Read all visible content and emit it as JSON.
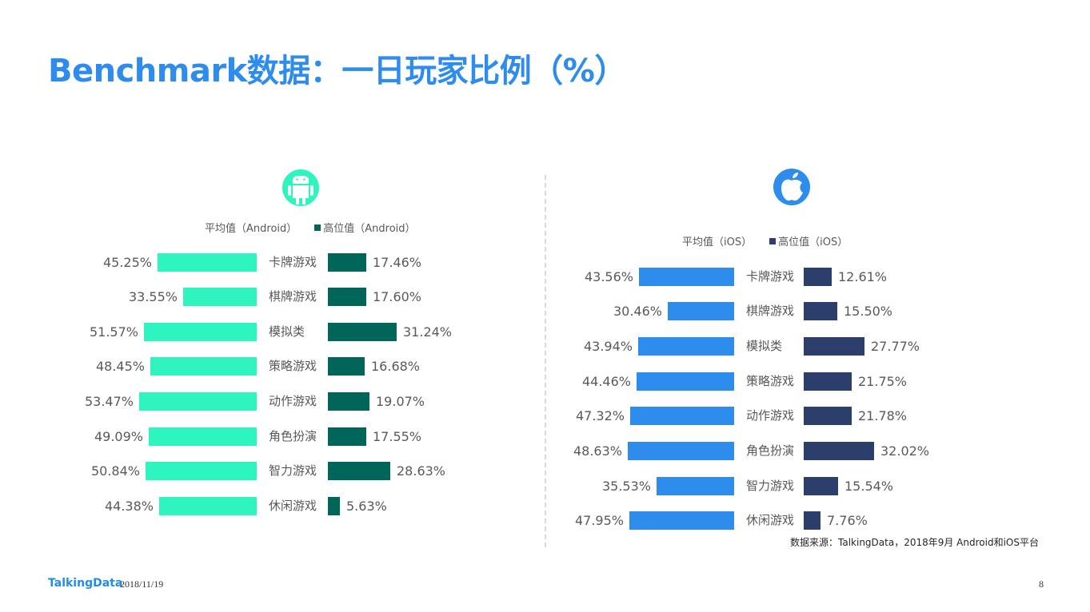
{
  "title": "Benchmark数据：一日玩家比例（%）",
  "source": "数据来源：TalkingData，2018年9月 Android和iOS平台",
  "footer": {
    "logo": "TalkingData",
    "date": "2018/11/19",
    "page": "8"
  },
  "colors": {
    "title": "#2e8cec",
    "android_avg": "#2ef5c0",
    "android_high": "#00665a",
    "ios_avg": "#2e8cec",
    "ios_high": "#2c3e6b"
  },
  "android": {
    "icon": "android-icon",
    "legend": {
      "avg": "平均值（Android）",
      "high": "高位值（Android）"
    }
  },
  "ios": {
    "icon": "apple-icon",
    "legend": {
      "avg": "平均值（iOS）",
      "high": "高位值（iOS）"
    }
  },
  "chart_data": [
    {
      "type": "bar",
      "title": "Android",
      "orientation": "horizontal-butterfly",
      "categories": [
        "卡牌游戏",
        "棋牌游戏",
        "模拟类",
        "策略游戏",
        "动作游戏",
        "角色扮演",
        "智力游戏",
        "休闲游戏"
      ],
      "series": [
        {
          "name": "平均值（Android）",
          "values": [
            45.25,
            33.55,
            51.57,
            48.45,
            53.47,
            49.09,
            50.84,
            44.38
          ],
          "labels": [
            "45.25%",
            "33.55%",
            "51.57%",
            "48.45%",
            "53.47%",
            "49.09%",
            "50.84%",
            "44.38%"
          ]
        },
        {
          "name": "高位值（Android）",
          "values": [
            17.46,
            17.6,
            31.24,
            16.68,
            19.07,
            17.55,
            28.63,
            5.63
          ],
          "labels": [
            "17.46%",
            "17.60%",
            "31.24%",
            "16.68%",
            "19.07%",
            "17.55%",
            "28.63%",
            "5.63%"
          ]
        }
      ],
      "xlabel": "",
      "ylabel": "",
      "unit": "%",
      "grid": false,
      "legend_position": "top"
    },
    {
      "type": "bar",
      "title": "iOS",
      "orientation": "horizontal-butterfly",
      "categories": [
        "卡牌游戏",
        "棋牌游戏",
        "模拟类",
        "策略游戏",
        "动作游戏",
        "角色扮演",
        "智力游戏",
        "休闲游戏"
      ],
      "series": [
        {
          "name": "平均值（iOS）",
          "values": [
            43.56,
            30.46,
            43.94,
            44.46,
            47.32,
            48.63,
            35.53,
            47.95
          ],
          "labels": [
            "43.56%",
            "30.46%",
            "43.94%",
            "44.46%",
            "47.32%",
            "48.63%",
            "35.53%",
            "47.95%"
          ]
        },
        {
          "name": "高位值（iOS）",
          "values": [
            12.61,
            15.5,
            27.77,
            21.75,
            21.78,
            32.02,
            15.54,
            7.76
          ],
          "labels": [
            "12.61%",
            "15.50%",
            "27.77%",
            "21.75%",
            "21.78%",
            "32.02%",
            "15.54%",
            "7.76%"
          ]
        }
      ],
      "xlabel": "",
      "ylabel": "",
      "unit": "%",
      "grid": false,
      "legend_position": "top"
    }
  ]
}
